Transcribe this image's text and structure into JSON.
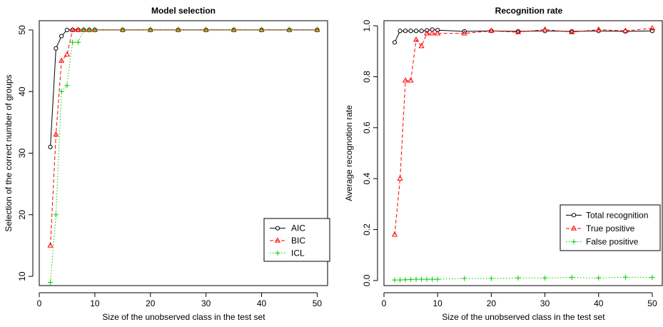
{
  "chart_data": [
    {
      "type": "line",
      "title": "Model selection",
      "xlabel": "Size of the unobserved class in the test set",
      "ylabel": "Selection of the correct number of groups",
      "xlim": [
        0,
        52
      ],
      "ylim": [
        8.5,
        51.5
      ],
      "xticks": [
        0,
        10,
        20,
        30,
        40,
        50
      ],
      "yticks": [
        10,
        20,
        30,
        40,
        50
      ],
      "legend_position": "bottom-right",
      "grid": false,
      "series": [
        {
          "name": "AIC",
          "color": "#000000",
          "marker": "circle",
          "dash": "solid",
          "x": [
            2,
            3,
            4,
            5,
            6,
            7,
            8,
            9,
            10,
            15,
            20,
            25,
            30,
            35,
            40,
            45,
            50
          ],
          "values": [
            31,
            47,
            49,
            50,
            50,
            50,
            50,
            50,
            50,
            50,
            50,
            50,
            50,
            50,
            50,
            50,
            50
          ]
        },
        {
          "name": "BIC",
          "color": "#ff0000",
          "marker": "triangle",
          "dash": "dashed",
          "x": [
            2,
            3,
            4,
            5,
            6,
            7,
            8,
            9,
            10,
            15,
            20,
            25,
            30,
            35,
            40,
            45,
            50
          ],
          "values": [
            15,
            33,
            45,
            46,
            50,
            50,
            50,
            50,
            50,
            50,
            50,
            50,
            50,
            50,
            50,
            50,
            50
          ]
        },
        {
          "name": "ICL",
          "color": "#00cd00",
          "marker": "plus",
          "dash": "dotted",
          "x": [
            2,
            3,
            4,
            5,
            6,
            7,
            8,
            9,
            10,
            15,
            20,
            25,
            30,
            35,
            40,
            45,
            50
          ],
          "values": [
            9,
            20,
            40,
            41,
            48,
            48,
            50,
            50,
            50,
            50,
            50,
            50,
            50,
            50,
            50,
            50,
            50
          ]
        }
      ]
    },
    {
      "type": "line",
      "title": "Recognition rate",
      "xlabel": "Size of the unobserved class in the test set",
      "ylabel": "Average recognotion rate",
      "xlim": [
        0,
        52
      ],
      "ylim": [
        -0.02,
        1.02
      ],
      "xticks": [
        0,
        10,
        20,
        30,
        40,
        50
      ],
      "yticks": [
        0.0,
        0.2,
        0.4,
        0.6,
        0.8,
        1.0
      ],
      "ytick_labels": [
        "0.0",
        "0.2",
        "0.4",
        "0.6",
        "0.8",
        "1.0"
      ],
      "legend_position": "right",
      "grid": false,
      "series": [
        {
          "name": "Total recognition",
          "color": "#000000",
          "marker": "circle",
          "dash": "solid",
          "x": [
            2,
            3,
            4,
            5,
            6,
            7,
            8,
            9,
            10,
            15,
            20,
            25,
            30,
            35,
            40,
            45,
            50
          ],
          "values": [
            0.935,
            0.98,
            0.98,
            0.98,
            0.98,
            0.98,
            0.982,
            0.985,
            0.983,
            0.978,
            0.98,
            0.978,
            0.98,
            0.978,
            0.98,
            0.978,
            0.98
          ]
        },
        {
          "name": "True positive",
          "color": "#ff0000",
          "marker": "triangle",
          "dash": "dashed",
          "x": [
            2,
            3,
            4,
            5,
            6,
            7,
            8,
            9,
            10,
            15,
            20,
            25,
            30,
            35,
            40,
            45,
            50
          ],
          "values": [
            0.18,
            0.4,
            0.785,
            0.785,
            0.945,
            0.92,
            0.97,
            0.97,
            0.97,
            0.97,
            0.98,
            0.975,
            0.985,
            0.975,
            0.985,
            0.98,
            0.99
          ]
        },
        {
          "name": "False positive",
          "color": "#00cd00",
          "marker": "plus",
          "dash": "dotted",
          "x": [
            2,
            3,
            4,
            5,
            6,
            7,
            8,
            9,
            10,
            15,
            20,
            25,
            30,
            35,
            40,
            45,
            50
          ],
          "values": [
            0.002,
            0.002,
            0.003,
            0.004,
            0.005,
            0.005,
            0.005,
            0.005,
            0.005,
            0.008,
            0.008,
            0.01,
            0.01,
            0.012,
            0.01,
            0.013,
            0.012
          ]
        }
      ]
    }
  ]
}
